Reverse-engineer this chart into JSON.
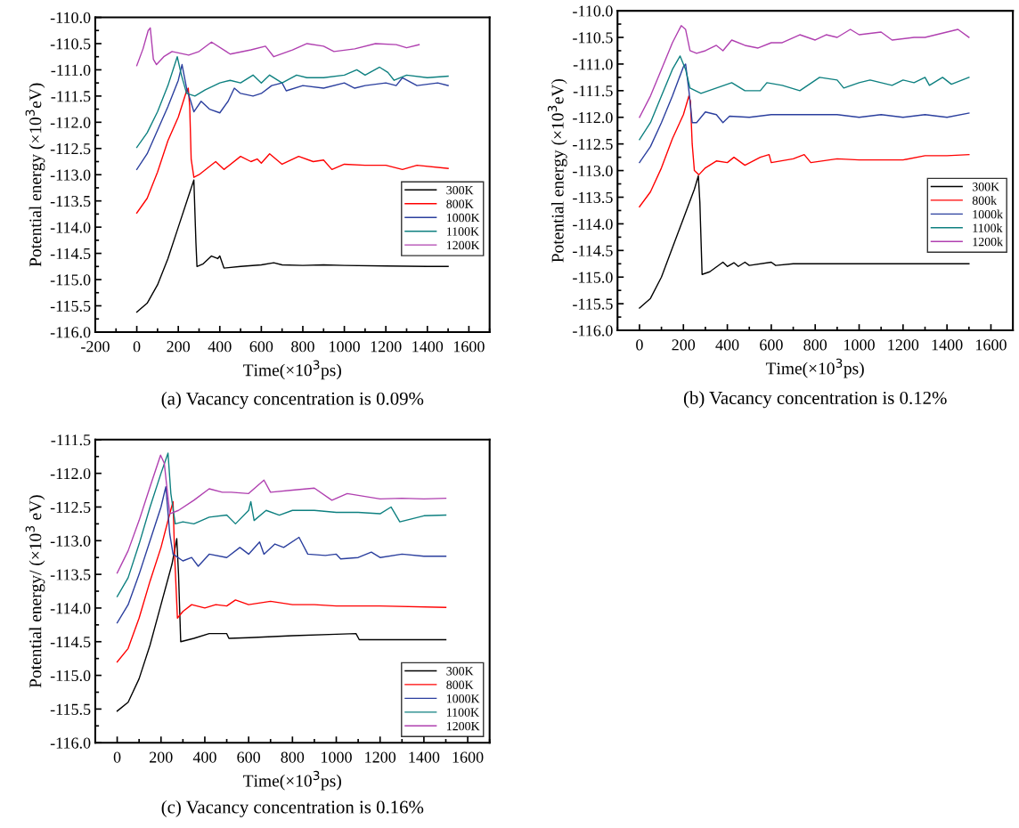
{
  "chart_data": [
    {
      "type": "line",
      "title": "(a) Vacancy concentration is 0.09%",
      "xlabel": "Time(×10$^{3}$ps)",
      "ylabel": "Potential energy (×10$^{3}$eV)",
      "xlim": [
        -200,
        1700
      ],
      "xticks": [
        -200,
        0,
        200,
        400,
        600,
        800,
        1000,
        1200,
        1400,
        1600
      ],
      "ylim": [
        -116,
        -110
      ],
      "yticks": [
        {
          "value": -116,
          "label": "-116.0"
        },
        {
          "value": -115.5,
          "label": "-115.5"
        },
        {
          "value": -115,
          "label": "-115.0"
        },
        {
          "value": -114.5,
          "label": "-114.5"
        },
        {
          "value": -114,
          "label": "-114.0"
        },
        {
          "value": -113.5,
          "label": "-113.5"
        },
        {
          "value": -113,
          "label": "-113.0"
        },
        {
          "value": -112.5,
          "label": "-112.5"
        },
        {
          "value": -112,
          "label": "-112.0"
        },
        {
          "value": -111.5,
          "label": "-111.5"
        },
        {
          "value": -111,
          "label": "-111.0"
        },
        {
          "value": -110.5,
          "label": "-110.5"
        },
        {
          "value": -110,
          "label": "-110.0"
        }
      ],
      "legend": "center right",
      "grid": false,
      "series": [
        {
          "name": "300K",
          "color": "#000000",
          "x": [
            0,
            50,
            100,
            150,
            200,
            250,
            275,
            285,
            290,
            320,
            360,
            390,
            400,
            420,
            500,
            600,
            660,
            700,
            800,
            900,
            1000,
            1200,
            1400,
            1500
          ],
          "values": [
            -115.62,
            -115.45,
            -115.1,
            -114.6,
            -114.0,
            -113.4,
            -113.1,
            -114.3,
            -114.75,
            -114.7,
            -114.55,
            -114.6,
            -114.55,
            -114.78,
            -114.75,
            -114.72,
            -114.68,
            -114.72,
            -114.73,
            -114.72,
            -114.73,
            -114.74,
            -114.75,
            -114.75
          ]
        },
        {
          "name": "800K",
          "color": "#ff0000",
          "x": [
            0,
            50,
            100,
            150,
            200,
            240,
            248,
            255,
            262,
            275,
            300,
            380,
            420,
            500,
            550,
            580,
            600,
            640,
            700,
            780,
            850,
            900,
            940,
            1000,
            1100,
            1200,
            1280,
            1350,
            1500
          ],
          "values": [
            -113.73,
            -113.45,
            -112.95,
            -112.35,
            -111.9,
            -111.4,
            -111.35,
            -111.7,
            -112.7,
            -113.05,
            -113.0,
            -112.75,
            -112.9,
            -112.65,
            -112.75,
            -112.7,
            -112.78,
            -112.6,
            -112.8,
            -112.65,
            -112.75,
            -112.72,
            -112.9,
            -112.8,
            -112.82,
            -112.82,
            -112.9,
            -112.82,
            -112.88
          ]
        },
        {
          "name": "1000K",
          "color": "#2b3f9e",
          "x": [
            0,
            50,
            100,
            150,
            200,
            218,
            240,
            260,
            275,
            310,
            350,
            400,
            440,
            470,
            500,
            560,
            600,
            650,
            700,
            720,
            800,
            900,
            1000,
            1050,
            1100,
            1200,
            1250,
            1280,
            1350,
            1450,
            1500
          ],
          "values": [
            -112.9,
            -112.6,
            -112.15,
            -111.7,
            -111.2,
            -110.9,
            -111.35,
            -111.6,
            -111.8,
            -111.6,
            -111.75,
            -111.82,
            -111.6,
            -111.35,
            -111.45,
            -111.5,
            -111.45,
            -111.3,
            -111.25,
            -111.4,
            -111.3,
            -111.35,
            -111.25,
            -111.35,
            -111.3,
            -111.25,
            -111.3,
            -111.15,
            -111.3,
            -111.25,
            -111.3
          ]
        },
        {
          "name": "1100K",
          "color": "#0e8080",
          "x": [
            0,
            50,
            100,
            150,
            195,
            215,
            240,
            280,
            330,
            400,
            450,
            500,
            560,
            600,
            640,
            700,
            770,
            820,
            900,
            1000,
            1060,
            1100,
            1170,
            1210,
            1240,
            1300,
            1400,
            1500
          ],
          "values": [
            -112.48,
            -112.2,
            -111.8,
            -111.3,
            -110.75,
            -111.1,
            -111.45,
            -111.5,
            -111.38,
            -111.25,
            -111.2,
            -111.25,
            -111.1,
            -111.25,
            -111.1,
            -111.25,
            -111.1,
            -111.15,
            -111.15,
            -111.1,
            -111.0,
            -111.1,
            -110.95,
            -111.05,
            -111.2,
            -111.1,
            -111.15,
            -111.12
          ]
        },
        {
          "name": "1200K",
          "color": "#b040b0",
          "x": [
            0,
            30,
            55,
            65,
            80,
            95,
            130,
            170,
            250,
            300,
            360,
            450,
            550,
            620,
            660,
            750,
            820,
            900,
            950,
            1050,
            1150,
            1250,
            1300,
            1360
          ],
          "values": [
            -110.92,
            -110.6,
            -110.25,
            -110.2,
            -110.8,
            -110.9,
            -110.75,
            -110.65,
            -110.72,
            -110.65,
            -110.47,
            -110.7,
            -110.62,
            -110.55,
            -110.75,
            -110.62,
            -110.5,
            -110.55,
            -110.65,
            -110.6,
            -110.5,
            -110.52,
            -110.58,
            -110.52
          ]
        }
      ]
    },
    {
      "type": "line",
      "title": "(b) Vacancy concentration is 0.12%",
      "xlabel": "Time(×10$^{3}$ps)",
      "ylabel": "Potential energy (×10$^{3}$eV)",
      "xlim": [
        -100,
        1700
      ],
      "xticks": [
        0,
        200,
        400,
        600,
        800,
        1000,
        1200,
        1400,
        1600
      ],
      "ylim": [
        -116,
        -110
      ],
      "yticks": [
        {
          "value": -116,
          "label": "-116.0"
        },
        {
          "value": -115.5,
          "label": "-115.5"
        },
        {
          "value": -115,
          "label": "-115.0"
        },
        {
          "value": -114.5,
          "label": "-114.5"
        },
        {
          "value": -114,
          "label": "-114.0"
        },
        {
          "value": -113.5,
          "label": "-113.5"
        },
        {
          "value": -113,
          "label": "-113.0"
        },
        {
          "value": -112.5,
          "label": "-112.5"
        },
        {
          "value": -112,
          "label": "-112.0"
        },
        {
          "value": -111.5,
          "label": "-111.5"
        },
        {
          "value": -111,
          "label": "-111.0"
        },
        {
          "value": -110.5,
          "label": "-110.5"
        },
        {
          "value": -110,
          "label": "-110.0"
        }
      ],
      "legend": "center right",
      "grid": false,
      "series": [
        {
          "name": "300K",
          "color": "#000000",
          "x": [
            0,
            50,
            100,
            150,
            200,
            250,
            268,
            275,
            285,
            320,
            380,
            400,
            430,
            450,
            480,
            500,
            600,
            620,
            700,
            800,
            1000,
            1200,
            1500
          ],
          "values": [
            -115.58,
            -115.4,
            -115.0,
            -114.45,
            -113.9,
            -113.35,
            -113.1,
            -113.6,
            -114.95,
            -114.9,
            -114.72,
            -114.8,
            -114.73,
            -114.8,
            -114.72,
            -114.78,
            -114.72,
            -114.78,
            -114.75,
            -114.75,
            -114.75,
            -114.75,
            -114.75
          ]
        },
        {
          "name": "800k",
          "color": "#ff0000",
          "x": [
            0,
            50,
            100,
            150,
            200,
            225,
            232,
            240,
            250,
            270,
            300,
            350,
            400,
            430,
            480,
            550,
            590,
            600,
            700,
            750,
            780,
            900,
            1000,
            1200,
            1300,
            1400,
            1500
          ],
          "values": [
            -113.68,
            -113.4,
            -112.95,
            -112.4,
            -111.95,
            -111.6,
            -111.7,
            -112.5,
            -113.0,
            -113.08,
            -112.95,
            -112.82,
            -112.85,
            -112.75,
            -112.9,
            -112.75,
            -112.7,
            -112.85,
            -112.78,
            -112.7,
            -112.85,
            -112.78,
            -112.8,
            -112.8,
            -112.72,
            -112.72,
            -112.7
          ]
        },
        {
          "name": "1000k",
          "color": "#2b3f9e",
          "x": [
            0,
            50,
            100,
            150,
            200,
            210,
            225,
            240,
            260,
            300,
            350,
            380,
            410,
            500,
            600,
            700,
            800,
            900,
            1000,
            1100,
            1200,
            1300,
            1400,
            1500
          ],
          "values": [
            -112.85,
            -112.55,
            -112.1,
            -111.6,
            -111.05,
            -111.0,
            -111.5,
            -112.1,
            -112.1,
            -111.9,
            -111.95,
            -112.1,
            -111.98,
            -112.0,
            -111.95,
            -111.95,
            -111.95,
            -111.95,
            -112.0,
            -111.95,
            -112.0,
            -111.95,
            -112.0,
            -111.92
          ]
        },
        {
          "name": "1100k",
          "color": "#0e8080",
          "x": [
            0,
            50,
            100,
            150,
            185,
            210,
            230,
            280,
            350,
            420,
            480,
            550,
            580,
            650,
            730,
            820,
            900,
            930,
            1000,
            1050,
            1150,
            1200,
            1250,
            1300,
            1320,
            1380,
            1420,
            1500
          ],
          "values": [
            -112.42,
            -112.1,
            -111.6,
            -111.1,
            -110.85,
            -111.1,
            -111.45,
            -111.55,
            -111.45,
            -111.35,
            -111.5,
            -111.5,
            -111.35,
            -111.4,
            -111.5,
            -111.25,
            -111.3,
            -111.45,
            -111.35,
            -111.3,
            -111.4,
            -111.3,
            -111.35,
            -111.25,
            -111.4,
            -111.25,
            -111.38,
            -111.25
          ]
        },
        {
          "name": "1200k",
          "color": "#b040b0",
          "x": [
            0,
            50,
            100,
            150,
            190,
            210,
            230,
            260,
            300,
            350,
            380,
            420,
            480,
            540,
            600,
            650,
            730,
            800,
            850,
            900,
            960,
            1000,
            1100,
            1150,
            1250,
            1300,
            1400,
            1450,
            1500
          ],
          "values": [
            -112.0,
            -111.6,
            -111.1,
            -110.6,
            -110.28,
            -110.35,
            -110.75,
            -110.8,
            -110.75,
            -110.65,
            -110.75,
            -110.55,
            -110.65,
            -110.7,
            -110.6,
            -110.6,
            -110.45,
            -110.55,
            -110.45,
            -110.5,
            -110.35,
            -110.45,
            -110.4,
            -110.55,
            -110.5,
            -110.5,
            -110.4,
            -110.35,
            -110.5
          ]
        }
      ]
    },
    {
      "type": "line",
      "title": "(c) Vacancy concentration is 0.16%",
      "xlabel": "Time(×10$^{3}$ps)",
      "ylabel": "Potential energy/ (×10$^{3}$ eV)",
      "xlim": [
        -100,
        1700
      ],
      "xticks": [
        0,
        200,
        400,
        600,
        800,
        1000,
        1200,
        1400,
        1600
      ],
      "ylim": [
        -116,
        -111.5
      ],
      "yticks": [
        {
          "value": -116,
          "label": "-116.0"
        },
        {
          "value": -115.5,
          "label": "-115.5"
        },
        {
          "value": -115,
          "label": "-115.0"
        },
        {
          "value": -114.5,
          "label": "-114.5"
        },
        {
          "value": -114,
          "label": "-114.0"
        },
        {
          "value": -113.5,
          "label": "-113.5"
        },
        {
          "value": -113,
          "label": "-113.0"
        },
        {
          "value": -112.5,
          "label": "-112.5"
        },
        {
          "value": -112,
          "label": "-112.0"
        },
        {
          "value": -111.5,
          "label": "-111.5"
        }
      ],
      "legend": "lower right",
      "grid": false,
      "series": [
        {
          "name": "300K",
          "color": "#000000",
          "x": [
            0,
            50,
            100,
            150,
            200,
            250,
            272,
            280,
            290,
            350,
            420,
            500,
            510,
            600,
            800,
            1000,
            1090,
            1105,
            1200,
            1500
          ],
          "values": [
            -115.53,
            -115.4,
            -115.05,
            -114.55,
            -113.95,
            -113.35,
            -112.97,
            -113.5,
            -114.5,
            -114.45,
            -114.38,
            -114.38,
            -114.45,
            -114.44,
            -114.41,
            -114.39,
            -114.38,
            -114.47,
            -114.47,
            -114.47
          ]
        },
        {
          "name": "800K",
          "color": "#ff0000",
          "x": [
            0,
            50,
            100,
            150,
            200,
            240,
            255,
            262,
            275,
            300,
            340,
            400,
            450,
            500,
            540,
            600,
            700,
            800,
            900,
            1000,
            1200,
            1500
          ],
          "values": [
            -114.8,
            -114.6,
            -114.15,
            -113.6,
            -113.1,
            -112.6,
            -112.42,
            -113.2,
            -114.15,
            -114.05,
            -113.95,
            -114.0,
            -113.95,
            -113.97,
            -113.88,
            -113.95,
            -113.9,
            -113.95,
            -113.95,
            -113.97,
            -113.97,
            -113.99
          ]
        },
        {
          "name": "1000K",
          "color": "#2b3f9e",
          "x": [
            0,
            50,
            100,
            150,
            200,
            222,
            240,
            255,
            300,
            340,
            370,
            420,
            500,
            560,
            600,
            650,
            670,
            720,
            760,
            830,
            870,
            950,
            1000,
            1020,
            1100,
            1160,
            1200,
            1300,
            1400,
            1500
          ],
          "values": [
            -114.22,
            -113.95,
            -113.5,
            -113.0,
            -112.5,
            -112.2,
            -112.9,
            -113.2,
            -113.3,
            -113.25,
            -113.38,
            -113.2,
            -113.25,
            -113.1,
            -113.2,
            -113.02,
            -113.2,
            -113.05,
            -113.1,
            -112.95,
            -113.2,
            -113.22,
            -113.2,
            -113.27,
            -113.25,
            -113.17,
            -113.25,
            -113.2,
            -113.23,
            -113.23
          ]
        },
        {
          "name": "1100K",
          "color": "#0e8080",
          "x": [
            0,
            50,
            100,
            150,
            200,
            232,
            245,
            265,
            300,
            350,
            420,
            500,
            540,
            600,
            610,
            625,
            680,
            740,
            800,
            900,
            1000,
            1100,
            1200,
            1250,
            1290,
            1400,
            1500
          ],
          "values": [
            -113.83,
            -113.55,
            -113.05,
            -112.5,
            -112.0,
            -111.7,
            -112.3,
            -112.75,
            -112.72,
            -112.75,
            -112.65,
            -112.62,
            -112.75,
            -112.55,
            -112.42,
            -112.7,
            -112.55,
            -112.62,
            -112.55,
            -112.55,
            -112.58,
            -112.58,
            -112.6,
            -112.5,
            -112.72,
            -112.63,
            -112.62
          ]
        },
        {
          "name": "1200K",
          "color": "#b040b0",
          "x": [
            0,
            50,
            100,
            150,
            198,
            215,
            240,
            280,
            350,
            420,
            480,
            520,
            600,
            670,
            700,
            800,
            900,
            980,
            1050,
            1200,
            1300,
            1400,
            1500
          ],
          "values": [
            -113.48,
            -113.15,
            -112.7,
            -112.2,
            -111.73,
            -111.85,
            -112.6,
            -112.55,
            -112.4,
            -112.23,
            -112.28,
            -112.28,
            -112.3,
            -112.1,
            -112.28,
            -112.25,
            -112.22,
            -112.4,
            -112.3,
            -112.38,
            -112.37,
            -112.38,
            -112.37
          ]
        }
      ]
    }
  ]
}
